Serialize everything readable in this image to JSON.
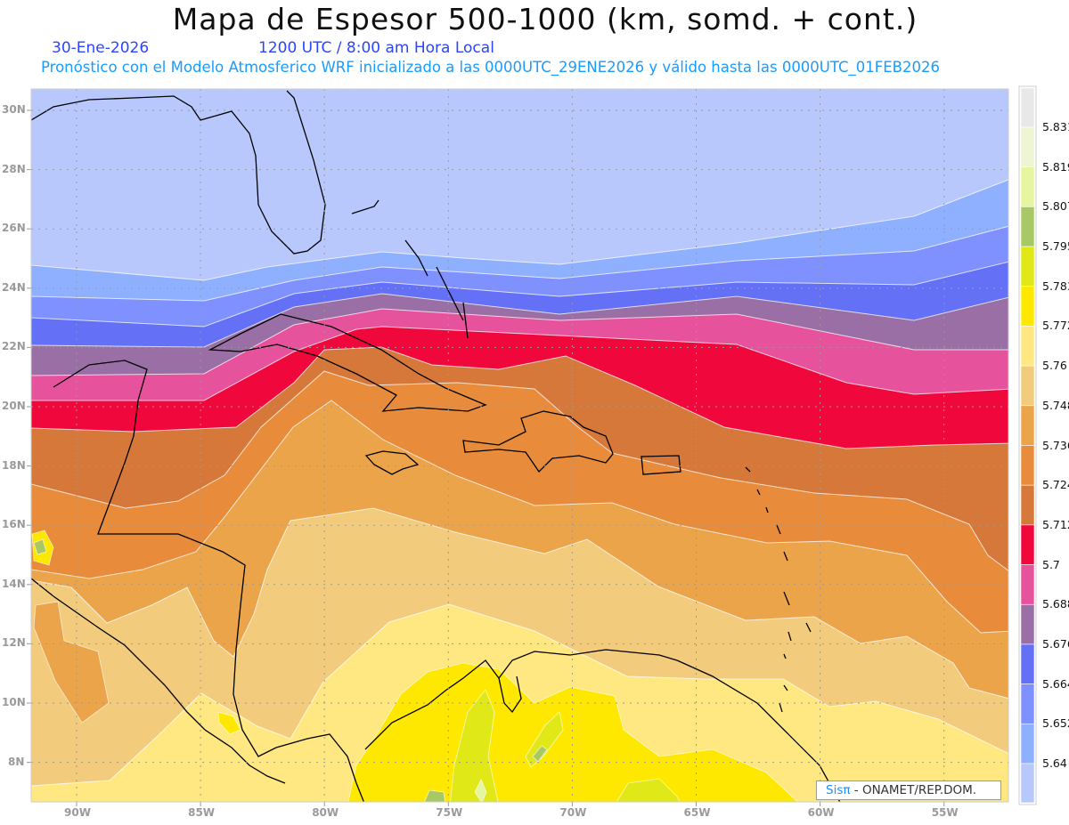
{
  "header": {
    "title": "Mapa de Espesor 500-1000 (km, somd. + cont.)",
    "date": "30-Ene-2026",
    "time": "1200 UTC / 8:00 am Hora Local",
    "model_info": "Pronóstico con el Modelo Atmosferico WRF inicializado a las 0000UTC_29ENE2026 y válido hasta las  0000UTC_01FEB2026"
  },
  "axes": {
    "lon_labels": [
      "90W",
      "85W",
      "80W",
      "75W",
      "70W",
      "65W",
      "60W",
      "55W"
    ],
    "lat_labels": [
      "30N",
      "28N",
      "26N",
      "24N",
      "22N",
      "20N",
      "18N",
      "16N",
      "14N",
      "12N",
      "10N",
      "8N"
    ]
  },
  "colorbar": {
    "levels": [
      "5.831",
      "5.819",
      "5.807",
      "5.795",
      "5.783",
      "5.772",
      "5.76",
      "5.748",
      "5.736",
      "5.724",
      "5.712",
      "5.7",
      "5.688",
      "5.676",
      "5.664",
      "5.652",
      "5.64"
    ],
    "colors_top_to_bottom": [
      "#e8e8e8",
      "#eef5d2",
      "#e6f5a0",
      "#a8c864",
      "#e0e818",
      "#ffe800",
      "#ffe882",
      "#f2cc7c",
      "#eca44b",
      "#e88c3c",
      "#d6783a",
      "#f0073c",
      "#e6529c",
      "#9a6fa6",
      "#6470f5",
      "#7f90ff",
      "#8fb0ff",
      "#b8c8fc"
    ]
  },
  "credit": {
    "brand": "Sisπ",
    "separator": " - ",
    "org": "ONAMET/REP.DOM."
  }
}
